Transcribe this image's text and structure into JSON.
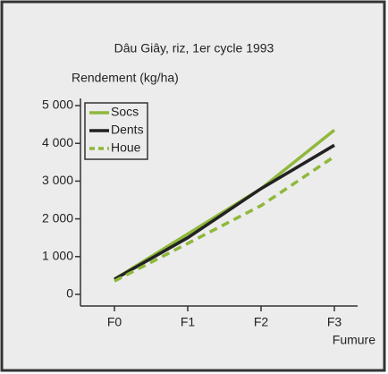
{
  "chart_data": {
    "type": "line",
    "title": "Dâu Giây, riz, 1er cycle 1993",
    "y_label": "Rendement (kg/ha)",
    "x_label": "Fumure",
    "categories": [
      "F0",
      "F1",
      "F2",
      "F3"
    ],
    "series": [
      {
        "name": "Socs",
        "color": "#8fb83c",
        "dashed": false,
        "values": [
          400,
          1600,
          2800,
          4350
        ]
      },
      {
        "name": "Dents",
        "color": "#222222",
        "dashed": false,
        "values": [
          400,
          1500,
          2800,
          3950
        ]
      },
      {
        "name": "Houe",
        "color": "#8fb83c",
        "dashed": true,
        "values": [
          350,
          1350,
          2350,
          3650
        ]
      }
    ],
    "ylim": [
      0,
      5000
    ],
    "yticks": [
      0,
      {
        "value": 1000,
        "label": "1 000"
      },
      {
        "value": 2000,
        "label": "2 000"
      },
      {
        "value": 3000,
        "label": "3 000"
      },
      {
        "value": 4000,
        "label": "4 000"
      },
      {
        "value": 5000,
        "label": "5 000"
      }
    ],
    "legend": "upper left"
  }
}
